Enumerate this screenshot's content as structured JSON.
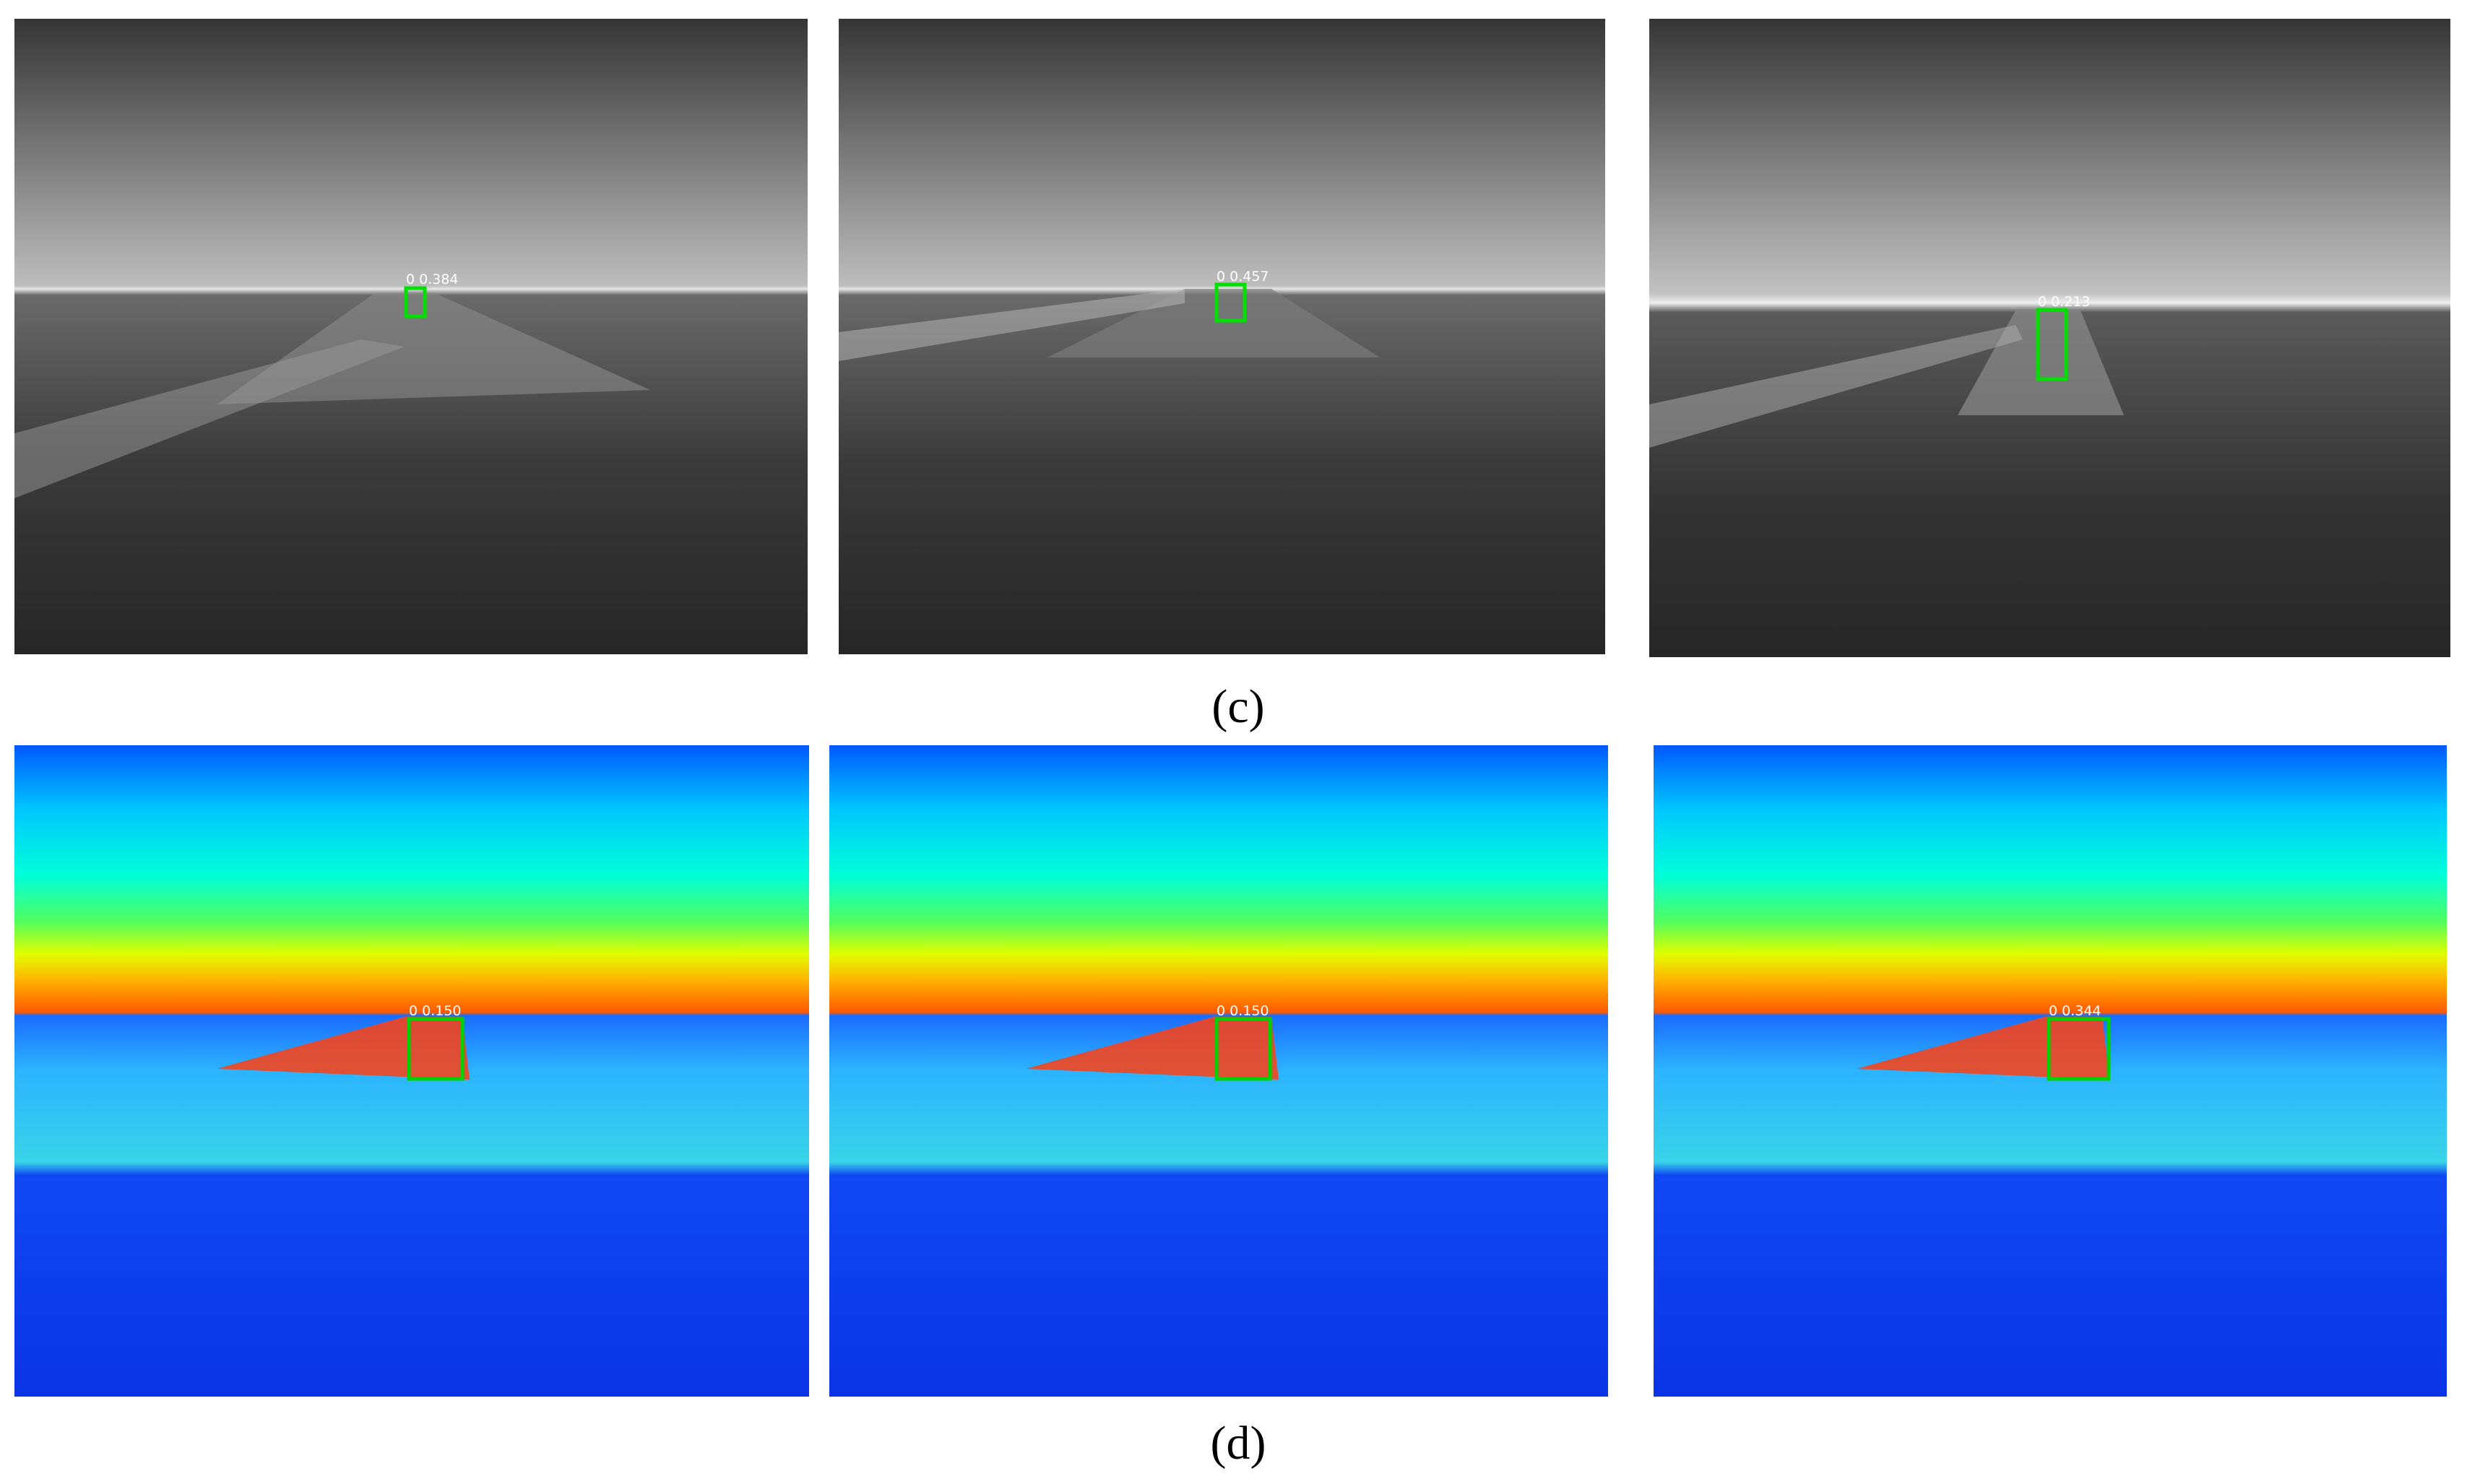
{
  "panels": [
    {
      "caption": "(c)",
      "images": [
        {
          "detection": "0  0.384"
        },
        {
          "detection": "0  0.457"
        },
        {
          "detection": "0  0.213"
        }
      ]
    },
    {
      "caption": "(d)",
      "images": [
        {
          "detection": "0  0.150"
        },
        {
          "detection": "0  0.150"
        },
        {
          "detection": "0  0.344"
        }
      ]
    }
  ]
}
